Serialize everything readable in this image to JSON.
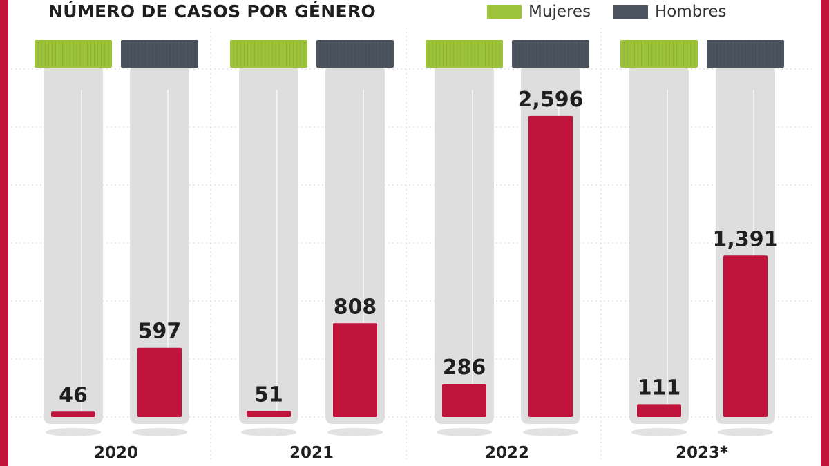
{
  "chart_data": {
    "type": "bar",
    "title": "NÚMERO DE CASOS POR GÉNERO",
    "categories": [
      "2020",
      "2021",
      "2022",
      "2023*"
    ],
    "series": [
      {
        "name": "Mujeres",
        "values": [
          46,
          51,
          286,
          111
        ],
        "cap_color": "#9dc33b"
      },
      {
        "name": "Hombres",
        "values": [
          597,
          808,
          2596,
          1391
        ],
        "cap_color": "#4b545e"
      }
    ],
    "value_labels": {
      "Mujeres": [
        "46",
        "51",
        "286",
        "111"
      ],
      "Hombres": [
        "597",
        "808",
        "2,596",
        "1,391"
      ]
    },
    "bar_color": "#c0143c",
    "tube_color": "#dedede",
    "ylim": [
      0,
      3000
    ],
    "grid": true,
    "legend": "top-right"
  }
}
